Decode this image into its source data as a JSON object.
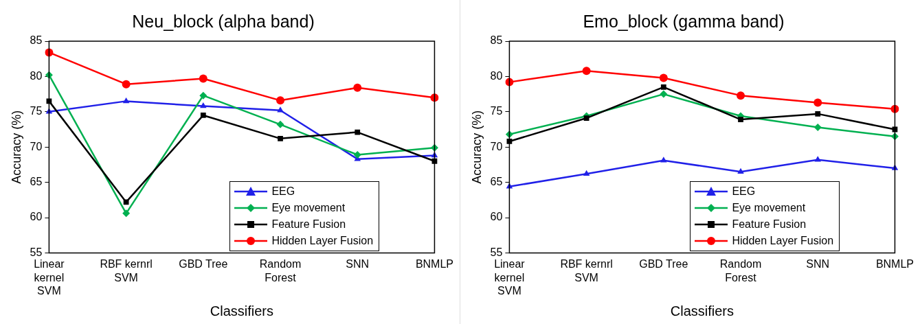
{
  "chart_data": [
    {
      "type": "line",
      "title": "Neu_block (alpha band)",
      "xlabel": "Classifiers",
      "ylabel": "Accuracy (%)",
      "categories": [
        "Linear kernel SVM",
        "RBF kernrl SVM",
        "GBD Tree",
        "Random Forest",
        "SNN",
        "BNMLP"
      ],
      "series": [
        {
          "name": "EEG",
          "color": "#2020e8",
          "marker": "triangle",
          "values": [
            75.0,
            76.5,
            75.8,
            75.2,
            68.3,
            68.8
          ]
        },
        {
          "name": "Eye movement",
          "color": "#00b050",
          "marker": "diamond",
          "values": [
            80.2,
            60.6,
            77.3,
            73.2,
            68.9,
            69.9
          ]
        },
        {
          "name": "Feature Fusion",
          "color": "#000000",
          "marker": "square",
          "values": [
            76.5,
            62.2,
            74.5,
            71.2,
            72.1,
            68.0
          ]
        },
        {
          "name": "Hidden Layer Fusion",
          "color": "#ff0000",
          "marker": "circle",
          "values": [
            83.4,
            78.9,
            79.7,
            76.6,
            78.4,
            77.0
          ]
        }
      ],
      "ylim": [
        55,
        85
      ],
      "yticks": [
        55,
        60,
        65,
        70,
        75,
        80,
        85
      ],
      "grid": false,
      "legend": "bottom right"
    },
    {
      "type": "line",
      "title": "Emo_block (gamma band)",
      "xlabel": "Classifiers",
      "ylabel": "Accuracy (%)",
      "categories": [
        "Linear kernel SVM",
        "RBF kernrl SVM",
        "GBD Tree",
        "Random Forest",
        "SNN",
        "BNMLP"
      ],
      "series": [
        {
          "name": "EEG",
          "color": "#2020e8",
          "marker": "triangle",
          "values": [
            64.4,
            66.2,
            68.1,
            66.5,
            68.2,
            67.0
          ]
        },
        {
          "name": "Eye movement",
          "color": "#00b050",
          "marker": "diamond",
          "values": [
            71.8,
            74.4,
            77.5,
            74.4,
            72.8,
            71.5
          ]
        },
        {
          "name": "Feature Fusion",
          "color": "#000000",
          "marker": "square",
          "values": [
            70.8,
            74.1,
            78.5,
            73.9,
            74.7,
            72.5
          ]
        },
        {
          "name": "Hidden Layer Fusion",
          "color": "#ff0000",
          "marker": "circle",
          "values": [
            79.2,
            80.8,
            79.8,
            77.3,
            76.3,
            75.4
          ]
        }
      ],
      "ylim": [
        55,
        85
      ],
      "yticks": [
        55,
        60,
        65,
        70,
        75,
        80,
        85
      ],
      "grid": false,
      "legend": "bottom right"
    }
  ]
}
